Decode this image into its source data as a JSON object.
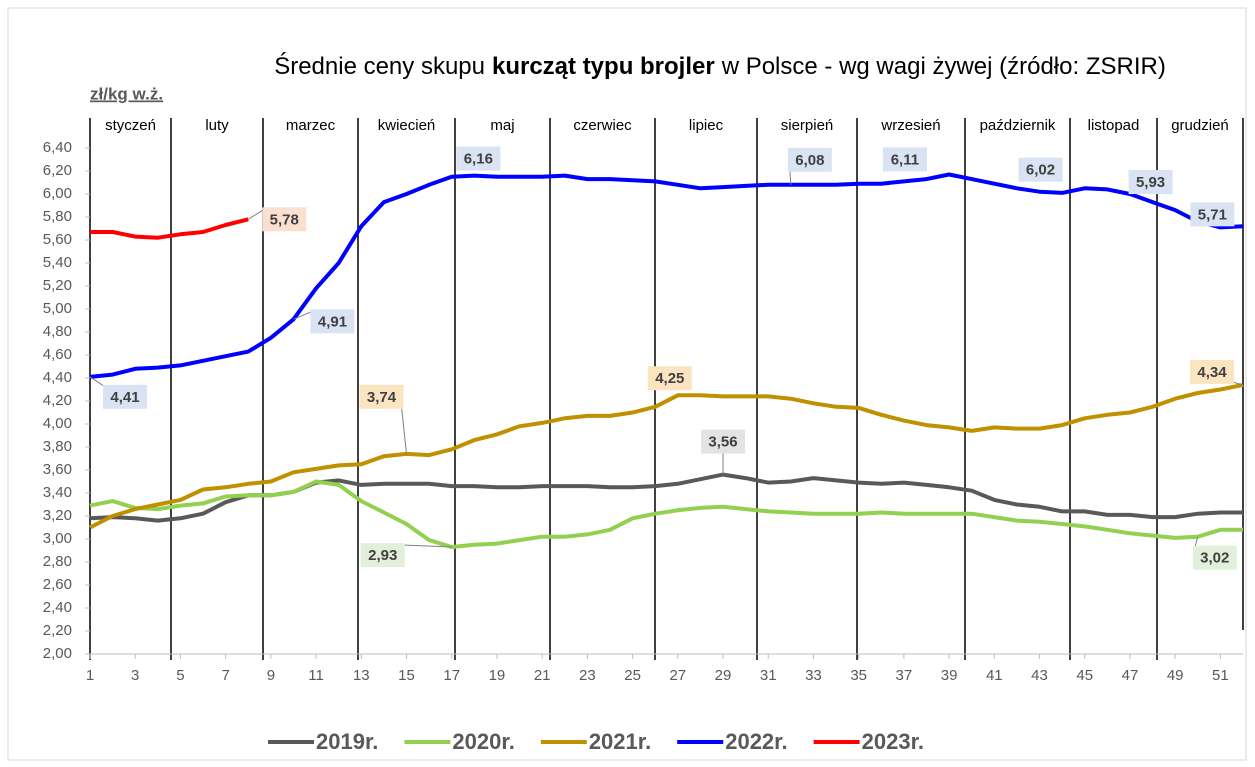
{
  "chart_data": {
    "type": "line",
    "title": [
      "Średnie ceny skupu",
      "kurcząt typu brojler",
      "w Polsce - wg wagi żywej (źródło: ZSRIR)"
    ],
    "ylabel": "zł/kg w.ż.",
    "months": [
      "styczeń",
      "luty",
      "marzec",
      "kwiecień",
      "maj",
      "czerwiec",
      "lipiec",
      "sierpień",
      "wrzesień",
      "październik",
      "listopad",
      "grudzień"
    ],
    "x": [
      1,
      2,
      3,
      4,
      5,
      6,
      7,
      8,
      9,
      10,
      11,
      12,
      13,
      14,
      15,
      16,
      17,
      18,
      19,
      20,
      21,
      22,
      23,
      24,
      25,
      26,
      27,
      28,
      29,
      30,
      31,
      32,
      33,
      34,
      35,
      36,
      37,
      38,
      39,
      40,
      41,
      42,
      43,
      44,
      45,
      46,
      47,
      48,
      49,
      50,
      51,
      52
    ],
    "xlim": [
      1,
      52
    ],
    "xticks": [
      1,
      3,
      5,
      7,
      9,
      11,
      13,
      15,
      17,
      19,
      21,
      23,
      25,
      27,
      29,
      31,
      33,
      35,
      37,
      39,
      41,
      43,
      45,
      47,
      49,
      51
    ],
    "ylim": [
      2,
      6.4
    ],
    "yticks": [
      {
        "value": 2,
        "label": "2,00"
      },
      {
        "value": 2.2,
        "label": "2,20"
      },
      {
        "value": 2.4,
        "label": "2,40"
      },
      {
        "value": 2.6,
        "label": "2,60"
      },
      {
        "value": 2.8,
        "label": "2,80"
      },
      {
        "value": 3,
        "label": "3,00"
      },
      {
        "value": 3.2,
        "label": "3,20"
      },
      {
        "value": 3.4,
        "label": "3,40"
      },
      {
        "value": 3.6,
        "label": "3,60"
      },
      {
        "value": 3.8,
        "label": "3,80"
      },
      {
        "value": 4,
        "label": "4,00"
      },
      {
        "value": 4.2,
        "label": "4,20"
      },
      {
        "value": 4.4,
        "label": "4,40"
      },
      {
        "value": 4.6,
        "label": "4,60"
      },
      {
        "value": 4.8,
        "label": "4,80"
      },
      {
        "value": 5,
        "label": "5,00"
      },
      {
        "value": 5.2,
        "label": "5,20"
      },
      {
        "value": 5.4,
        "label": "5,40"
      },
      {
        "value": 5.6,
        "label": "5,60"
      },
      {
        "value": 5.8,
        "label": "5,80"
      },
      {
        "value": 6,
        "label": "6,00"
      },
      {
        "value": 6.2,
        "label": "6,20"
      },
      {
        "value": 6.4,
        "label": "6,40"
      }
    ],
    "legend": "bottom",
    "series": [
      {
        "name": "2019r.",
        "color": "#595959",
        "label_bg": "#e3e3e3",
        "values": [
          3.18,
          3.19,
          3.18,
          3.16,
          3.18,
          3.22,
          3.32,
          3.38,
          3.38,
          3.41,
          3.49,
          3.51,
          3.47,
          3.48,
          3.48,
          3.48,
          3.46,
          3.46,
          3.45,
          3.45,
          3.46,
          3.46,
          3.46,
          3.45,
          3.45,
          3.46,
          3.48,
          3.52,
          3.56,
          3.53,
          3.49,
          3.5,
          3.53,
          3.51,
          3.49,
          3.48,
          3.49,
          3.47,
          3.45,
          3.42,
          3.34,
          3.3,
          3.28,
          3.24,
          3.24,
          3.21,
          3.21,
          3.19,
          3.19,
          3.22,
          3.23,
          3.23
        ],
        "value_labels": [
          null,
          null,
          null,
          null,
          null,
          null,
          null,
          null,
          null,
          null,
          null,
          null,
          null,
          null,
          null,
          null,
          null,
          null,
          null,
          null,
          null,
          null,
          null,
          null,
          null,
          null,
          null,
          null,
          "3,56",
          null,
          null,
          null,
          null,
          null,
          null,
          null,
          null,
          null,
          null,
          null,
          null,
          null,
          null,
          null,
          null,
          null,
          null,
          null,
          null,
          null,
          null,
          null
        ]
      },
      {
        "name": "2020r.",
        "color": "#92d050",
        "label_bg": "#e2efda",
        "values": [
          3.29,
          3.33,
          3.27,
          3.26,
          3.29,
          3.31,
          3.37,
          3.38,
          3.38,
          3.41,
          3.5,
          3.47,
          3.33,
          3.23,
          3.13,
          2.99,
          2.93,
          2.95,
          2.96,
          2.99,
          3.02,
          3.02,
          3.04,
          3.08,
          3.18,
          3.22,
          3.25,
          3.27,
          3.28,
          3.26,
          3.24,
          3.23,
          3.22,
          3.22,
          3.22,
          3.23,
          3.22,
          3.22,
          3.22,
          3.22,
          3.19,
          3.16,
          3.15,
          3.13,
          3.11,
          3.08,
          3.05,
          3.03,
          3.01,
          3.02,
          3.08,
          3.08
        ],
        "value_labels": [
          null,
          null,
          null,
          null,
          null,
          null,
          null,
          null,
          null,
          null,
          null,
          null,
          null,
          null,
          null,
          null,
          "2,93",
          null,
          null,
          null,
          null,
          null,
          null,
          null,
          null,
          null,
          null,
          null,
          null,
          null,
          null,
          null,
          null,
          null,
          null,
          null,
          null,
          null,
          null,
          null,
          null,
          null,
          null,
          null,
          null,
          null,
          null,
          null,
          null,
          "3,02",
          null,
          null
        ]
      },
      {
        "name": "2021r.",
        "color": "#bf9000",
        "label_bg": "#fbe5c0",
        "values": [
          3.1,
          3.2,
          3.26,
          3.3,
          3.34,
          3.43,
          3.45,
          3.48,
          3.5,
          3.58,
          3.61,
          3.64,
          3.65,
          3.72,
          3.74,
          3.73,
          3.78,
          3.86,
          3.91,
          3.98,
          4.01,
          4.05,
          4.07,
          4.07,
          4.1,
          4.15,
          4.25,
          4.25,
          4.24,
          4.24,
          4.24,
          4.22,
          4.18,
          4.15,
          4.14,
          4.08,
          4.03,
          3.99,
          3.97,
          3.94,
          3.97,
          3.96,
          3.96,
          3.99,
          4.05,
          4.08,
          4.1,
          4.15,
          4.22,
          4.27,
          4.3,
          4.34
        ],
        "value_labels": [
          null,
          null,
          null,
          null,
          null,
          null,
          null,
          null,
          null,
          null,
          null,
          null,
          null,
          null,
          "3,74",
          null,
          null,
          null,
          null,
          null,
          null,
          null,
          null,
          null,
          null,
          null,
          "4,25",
          null,
          null,
          null,
          null,
          null,
          null,
          null,
          null,
          null,
          null,
          null,
          null,
          null,
          null,
          null,
          null,
          null,
          null,
          null,
          null,
          null,
          null,
          null,
          null,
          "4,34"
        ]
      },
      {
        "name": "2022r.",
        "color": "#0000ff",
        "label_bg": "#dae3f3",
        "values": [
          4.41,
          4.43,
          4.48,
          4.49,
          4.51,
          4.55,
          4.59,
          4.63,
          4.75,
          4.91,
          5.18,
          5.4,
          5.72,
          5.93,
          6.0,
          6.08,
          6.15,
          6.16,
          6.15,
          6.15,
          6.15,
          6.16,
          6.13,
          6.13,
          6.12,
          6.11,
          6.08,
          6.05,
          6.06,
          6.07,
          6.08,
          6.08,
          6.08,
          6.08,
          6.09,
          6.09,
          6.11,
          6.13,
          6.17,
          6.13,
          6.09,
          6.05,
          6.02,
          6.01,
          6.05,
          6.04,
          6.0,
          5.93,
          5.86,
          5.76,
          5.71,
          5.72
        ],
        "value_labels": [
          "4,41",
          null,
          null,
          null,
          null,
          null,
          null,
          null,
          null,
          "4,91",
          null,
          null,
          null,
          null,
          null,
          null,
          null,
          "6,16",
          null,
          null,
          null,
          null,
          null,
          null,
          null,
          null,
          null,
          null,
          null,
          null,
          null,
          "6,08",
          null,
          null,
          null,
          null,
          "6,11",
          null,
          null,
          null,
          null,
          null,
          "6,02",
          null,
          null,
          null,
          null,
          "5,93",
          null,
          null,
          "5,71",
          null
        ]
      },
      {
        "name": "2023r.",
        "color": "#ff0000",
        "label_bg": "#fbe0d0",
        "values": [
          5.67,
          5.67,
          5.63,
          5.62,
          5.65,
          5.67,
          5.73,
          5.78,
          null,
          null,
          null,
          null,
          null,
          null,
          null,
          null,
          null,
          null,
          null,
          null,
          null,
          null,
          null,
          null,
          null,
          null,
          null,
          null,
          null,
          null,
          null,
          null,
          null,
          null,
          null,
          null,
          null,
          null,
          null,
          null,
          null,
          null,
          null,
          null,
          null,
          null,
          null,
          null,
          null,
          null,
          null,
          null
        ],
        "value_labels": [
          null,
          null,
          null,
          null,
          null,
          null,
          null,
          "5,78",
          null,
          null,
          null,
          null,
          null,
          null,
          null,
          null,
          null,
          null,
          null,
          null,
          null,
          null,
          null,
          null,
          null,
          null,
          null,
          null,
          null,
          null,
          null,
          null,
          null,
          null,
          null,
          null,
          null,
          null,
          null,
          null,
          null,
          null,
          null,
          null,
          null,
          null,
          null,
          null,
          null,
          null,
          null,
          null
        ]
      }
    ]
  }
}
